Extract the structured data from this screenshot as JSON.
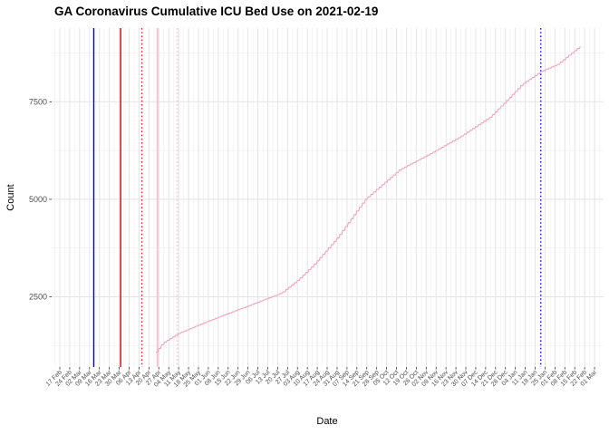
{
  "chart_data": {
    "type": "line",
    "title": "GA Coronavirus Cumulative ICU Bed Use on 2021-02-19",
    "xlabel": "Date",
    "ylabel": "Count",
    "y_tick_labels": [
      "2500",
      "5000",
      "7500"
    ],
    "y_ticks": [
      2500,
      5000,
      7500
    ],
    "y_minor_gridlines": [
      1250,
      3750,
      6250,
      8750
    ],
    "ylim": [
      700,
      9380
    ],
    "x_day0": "2020-02-17",
    "x_tick_interval_days": 7,
    "x_tick_labels": [
      "17 Feb",
      "24 Feb",
      "02 Mar",
      "09 Mar",
      "16 Mar",
      "23 Mar",
      "30 Mar",
      "06 Apr",
      "13 Apr",
      "20 Apr",
      "27 Apr",
      "04 May",
      "11 May",
      "18 May",
      "25 May",
      "01 Jun",
      "08 Jun",
      "15 Jun",
      "22 Jun",
      "29 Jun",
      "06 Jul",
      "13 Jul",
      "20 Jul",
      "27 Jul",
      "03 Aug",
      "10 Aug",
      "17 Aug",
      "24 Aug",
      "31 Aug",
      "07 Sep",
      "14 Sep",
      "21 Sep",
      "28 Sep",
      "05 Oct",
      "12 Oct",
      "19 Oct",
      "26 Oct",
      "02 Nov",
      "09 Nov",
      "16 Nov",
      "23 Nov",
      "30 Nov",
      "07 Dec",
      "14 Dec",
      "21 Dec",
      "28 Dec",
      "04 Jan",
      "11 Jan",
      "18 Jan",
      "25 Jan",
      "01 Feb",
      "08 Feb",
      "15 Feb",
      "22 Feb",
      "01 Mar"
    ],
    "grid": true,
    "legend": false,
    "series": [
      {
        "name": "cumulative-icu-bed-use",
        "color": "#f2a4bd",
        "points_day_value": [
          [
            68,
            1080
          ],
          [
            73,
            1320
          ],
          [
            84,
            1560
          ],
          [
            99,
            1790
          ],
          [
            118,
            2060
          ],
          [
            137,
            2320
          ],
          [
            157,
            2600
          ],
          [
            169,
            2950
          ],
          [
            179,
            3300
          ],
          [
            190,
            3750
          ],
          [
            197,
            4050
          ],
          [
            216,
            5000
          ],
          [
            240,
            5750
          ],
          [
            261,
            6150
          ],
          [
            283,
            6600
          ],
          [
            304,
            7100
          ],
          [
            315,
            7500
          ],
          [
            327,
            7950
          ],
          [
            340,
            8270
          ],
          [
            352,
            8460
          ],
          [
            362,
            8750
          ],
          [
            368,
            8920
          ]
        ]
      }
    ],
    "vlines": [
      {
        "name": "vline-blue-solid",
        "date": "2020-03-12",
        "day": 24,
        "color": "#0000cc",
        "style": "solid"
      },
      {
        "name": "vline-red-solid",
        "date": "2020-03-31",
        "day": 43,
        "color": "#d60000",
        "style": "solid"
      },
      {
        "name": "vline-darkred-dotted",
        "date": "2020-04-15",
        "day": 58,
        "color": "#c22b2b",
        "style": "dotted"
      },
      {
        "name": "vline-pink-solid",
        "date": "2020-04-26",
        "day": 69,
        "color": "#f7c2cf",
        "style": "solid"
      },
      {
        "name": "vline-pink-dotted",
        "date": "2020-05-10",
        "day": 83,
        "color": "#f8cfd9",
        "style": "dotted"
      },
      {
        "name": "vline-blue-dotted",
        "date": "2021-01-22",
        "day": 340,
        "color": "#1a1ac8",
        "style": "dotted"
      }
    ],
    "colors": {
      "grid_major": "#e4e4e4",
      "grid_minor": "#f1f1f1",
      "axis_text": "#4d4d4d",
      "tick_mark": "#333333",
      "background": "#ffffff"
    }
  }
}
